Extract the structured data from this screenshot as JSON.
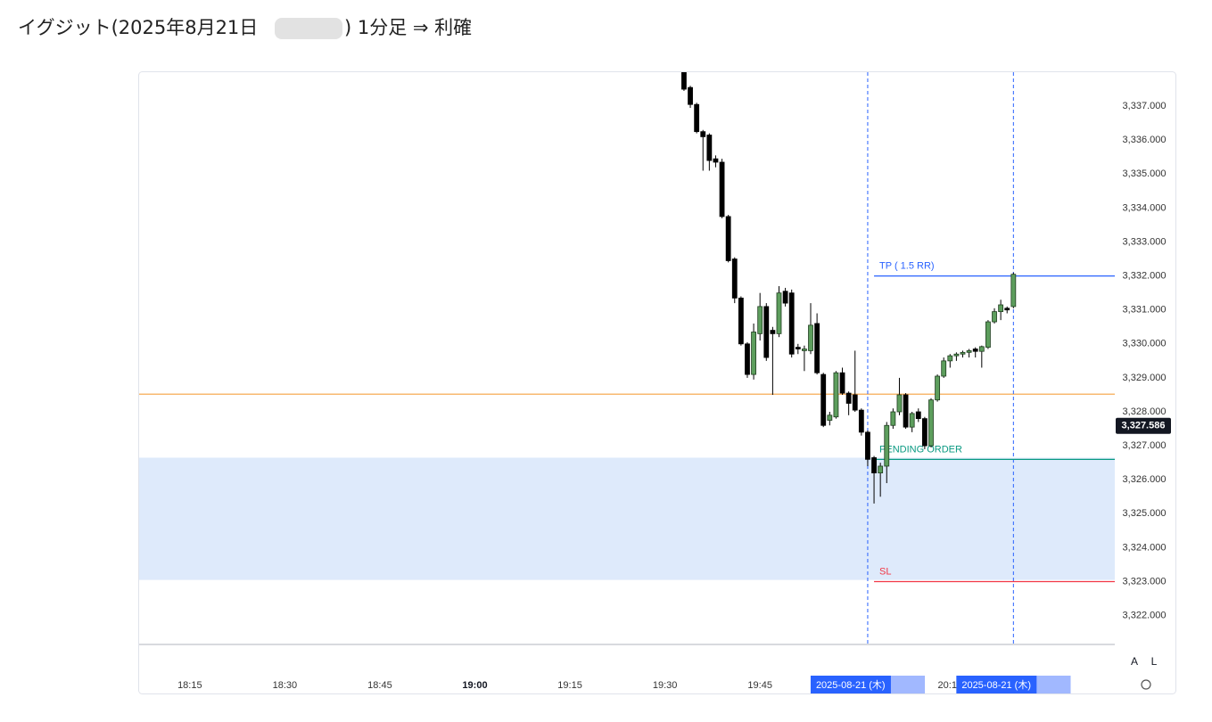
{
  "header": {
    "title_left": "イグジット(2025年8月21日",
    "title_right": ") 1分足 ⇒ 利確"
  },
  "chart_data": {
    "type": "candlestick",
    "x": [
      "19:33",
      "19:34",
      "19:35",
      "19:36",
      "19:37",
      "19:38",
      "19:39",
      "19:40",
      "19:41",
      "19:42",
      "19:43",
      "19:44",
      "19:45",
      "19:46",
      "19:47",
      "19:48",
      "19:49",
      "19:50",
      "19:51",
      "19:52",
      "19:53",
      "19:54",
      "19:55",
      "19:56",
      "19:57",
      "19:58",
      "19:59",
      "20:00",
      "20:01",
      "20:02",
      "20:03",
      "20:04",
      "20:05",
      "20:06",
      "20:07",
      "20:08",
      "20:09",
      "20:10",
      "20:11",
      "20:12",
      "20:13",
      "20:14",
      "20:15",
      "20:16",
      "20:17",
      "20:18",
      "20:19",
      "20:20",
      "20:21",
      "20:22",
      "20:23",
      "20:24",
      "20:25"
    ],
    "open": [
      3338.0,
      3337.55,
      3337.05,
      3336.25,
      3336.15,
      3335.45,
      3335.35,
      3333.75,
      3332.5,
      3331.35,
      3330.0,
      3329.1,
      3330.3,
      3331.1,
      3330.4,
      3330.3,
      3331.55,
      3331.5,
      3329.9,
      3329.8,
      3329.8,
      3330.6,
      3329.1,
      3327.75,
      3327.85,
      3329.15,
      3328.55,
      3328.5,
      3328.05,
      3327.4,
      3326.65,
      3326.2,
      3326.4,
      3327.6,
      3328.0,
      3328.5,
      3327.55,
      3328.0,
      3327.8,
      3327.0,
      3328.35,
      3329.05,
      3329.5,
      3329.65,
      3329.7,
      3329.75,
      3329.85,
      3329.78,
      3329.9,
      3330.65,
      3330.95,
      3331.05,
      3331.1
    ],
    "high": [
      3338.3,
      3337.6,
      3337.1,
      3336.3,
      3336.2,
      3335.55,
      3335.45,
      3333.8,
      3332.55,
      3331.4,
      3330.05,
      3330.6,
      3331.5,
      3331.2,
      3330.5,
      3331.7,
      3331.65,
      3331.6,
      3330.0,
      3329.95,
      3331.2,
      3330.9,
      3329.15,
      3328.0,
      3329.2,
      3329.3,
      3328.6,
      3329.8,
      3328.1,
      3327.45,
      3326.7,
      3326.5,
      3327.7,
      3328.1,
      3329.0,
      3328.55,
      3328.0,
      3328.1,
      3327.85,
      3328.4,
      3329.1,
      3329.6,
      3329.7,
      3329.75,
      3329.8,
      3329.85,
      3329.9,
      3329.95,
      3330.7,
      3331.05,
      3331.3,
      3331.1,
      3332.1
    ],
    "low": [
      3337.45,
      3336.95,
      3336.2,
      3335.1,
      3335.1,
      3335.2,
      3333.7,
      3332.4,
      3331.2,
      3329.95,
      3329.0,
      3328.95,
      3330.1,
      3329.5,
      3328.5,
      3330.2,
      3331.1,
      3329.6,
      3329.7,
      3329.2,
      3329.7,
      3329.1,
      3327.55,
      3327.6,
      3327.8,
      3328.5,
      3327.9,
      3328.0,
      3327.3,
      3326.4,
      3325.3,
      3325.5,
      3325.9,
      3327.5,
      3327.9,
      3327.5,
      3327.4,
      3327.7,
      3326.9,
      3326.95,
      3328.3,
      3329.0,
      3329.3,
      3329.5,
      3329.6,
      3329.6,
      3329.6,
      3329.3,
      3329.85,
      3330.6,
      3330.7,
      3330.9,
      3331.05
    ],
    "close": [
      3337.5,
      3337.05,
      3336.25,
      3336.1,
      3335.4,
      3335.35,
      3333.75,
      3332.45,
      3331.35,
      3330.0,
      3329.1,
      3330.35,
      3331.1,
      3329.6,
      3330.3,
      3331.5,
      3331.2,
      3329.7,
      3329.85,
      3329.85,
      3330.55,
      3329.15,
      3327.6,
      3327.9,
      3329.15,
      3328.55,
      3328.25,
      3328.05,
      3327.4,
      3326.6,
      3326.2,
      3326.4,
      3327.6,
      3328.0,
      3328.5,
      3327.55,
      3327.95,
      3327.8,
      3327.0,
      3328.35,
      3329.05,
      3329.5,
      3329.65,
      3329.7,
      3329.75,
      3329.8,
      3329.78,
      3329.92,
      3330.65,
      3330.95,
      3331.15,
      3331.0,
      3332.05
    ],
    "up_color": "#5d9e5d",
    "down_color": "#000000",
    "xlim": [
      "18:07",
      "20:41"
    ],
    "xticks": [
      "18:15",
      "18:30",
      "18:45",
      "19:00",
      "19:15",
      "19:30",
      "19:45",
      "20:00",
      "20:15"
    ],
    "ylim": [
      3321.15,
      3338.0
    ],
    "yticks": [
      {
        "value": 3322,
        "label": "3,322.000"
      },
      {
        "value": 3323,
        "label": "3,323.000"
      },
      {
        "value": 3324,
        "label": "3,324.000"
      },
      {
        "value": 3325,
        "label": "3,325.000"
      },
      {
        "value": 3326,
        "label": "3,326.000"
      },
      {
        "value": 3327,
        "label": "3,327.000"
      },
      {
        "value": 3328,
        "label": "3,328.000"
      },
      {
        "value": 3329,
        "label": "3,329.000"
      },
      {
        "value": 3330,
        "label": "3,330.000"
      },
      {
        "value": 3331,
        "label": "3,331.000"
      },
      {
        "value": 3332,
        "label": "3,332.000"
      },
      {
        "value": 3333,
        "label": "3,333.000"
      },
      {
        "value": 3334,
        "label": "3,334.000"
      },
      {
        "value": 3335,
        "label": "3,335.000"
      },
      {
        "value": 3336,
        "label": "3,336.000"
      },
      {
        "value": 3337,
        "label": "3,337.000"
      }
    ],
    "level_line": {
      "value": 3328.52,
      "color": "#f5a040"
    },
    "zone": {
      "from": 3323.05,
      "to": 3326.65,
      "color": "#deeafb"
    },
    "orders": [
      {
        "label": "TP ( 1.5 RR)",
        "value": 3332.0,
        "color": "#2962ff"
      },
      {
        "label": "PENDING ORDER",
        "value": 3326.6,
        "color": "#089981"
      },
      {
        "label": "SL",
        "value": 3323.0,
        "color": "#f23645"
      }
    ],
    "order_start": "20:03",
    "current_price": {
      "value": 3327.586,
      "label": "3,327.586"
    },
    "crosshairs": [
      {
        "x": "20:02",
        "label": "2025-08-21 (木)"
      },
      {
        "x": "20:25",
        "label": "2025-08-21 (木)"
      }
    ],
    "buttons": [
      "A",
      "L"
    ]
  }
}
